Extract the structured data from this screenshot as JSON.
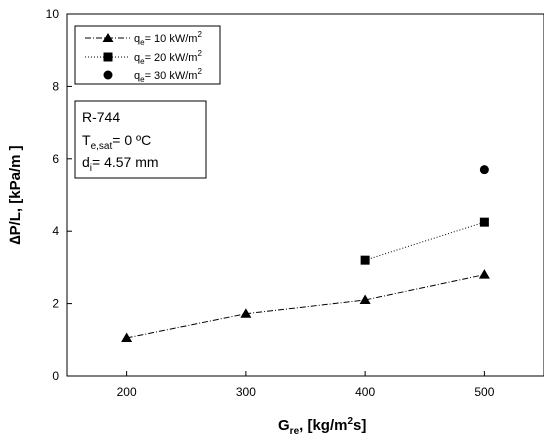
{
  "chart_data": {
    "type": "line",
    "x_ticks": [
      "200",
      "300",
      "400",
      "500"
    ],
    "y_ticks": [
      "0",
      "2",
      "4",
      "6",
      "8",
      "10"
    ],
    "xlim": [
      150,
      550
    ],
    "ylim": [
      0,
      10
    ],
    "xlabel": {
      "main": "G",
      "sub": "re",
      "rest1": ", [kg/m",
      "sup": "2",
      "rest2": "s]"
    },
    "ylabel": "∆P/L, [kPa/m ]",
    "grid": false,
    "legend_position": "top-left",
    "series": [
      {
        "name": {
          "main": "q",
          "sub": "e",
          "rest": "= 10 kW/m",
          "sup": "2"
        },
        "marker": "triangle",
        "line": "dashdot",
        "x": [
          200,
          300,
          400,
          500
        ],
        "y": [
          1.05,
          1.72,
          2.1,
          2.8
        ]
      },
      {
        "name": {
          "main": "q",
          "sub": "e",
          "rest": "= 20 kW/m",
          "sup": "2"
        },
        "marker": "square",
        "line": "dotted",
        "x": [
          400,
          500
        ],
        "y": [
          3.2,
          4.25
        ]
      },
      {
        "name": {
          "main": "q",
          "sub": "e",
          "rest": "= 30 kW/m",
          "sup": "2"
        },
        "marker": "circle",
        "line": "none",
        "x": [
          500
        ],
        "y": [
          5.7
        ]
      }
    ],
    "annotation": {
      "line1": "R-744",
      "line2": {
        "main": "T",
        "sub": "e,sat",
        "rest": "= 0 ºC"
      },
      "line3": {
        "main": "d",
        "sub": "i",
        "rest": "= 4.57 mm"
      }
    }
  }
}
